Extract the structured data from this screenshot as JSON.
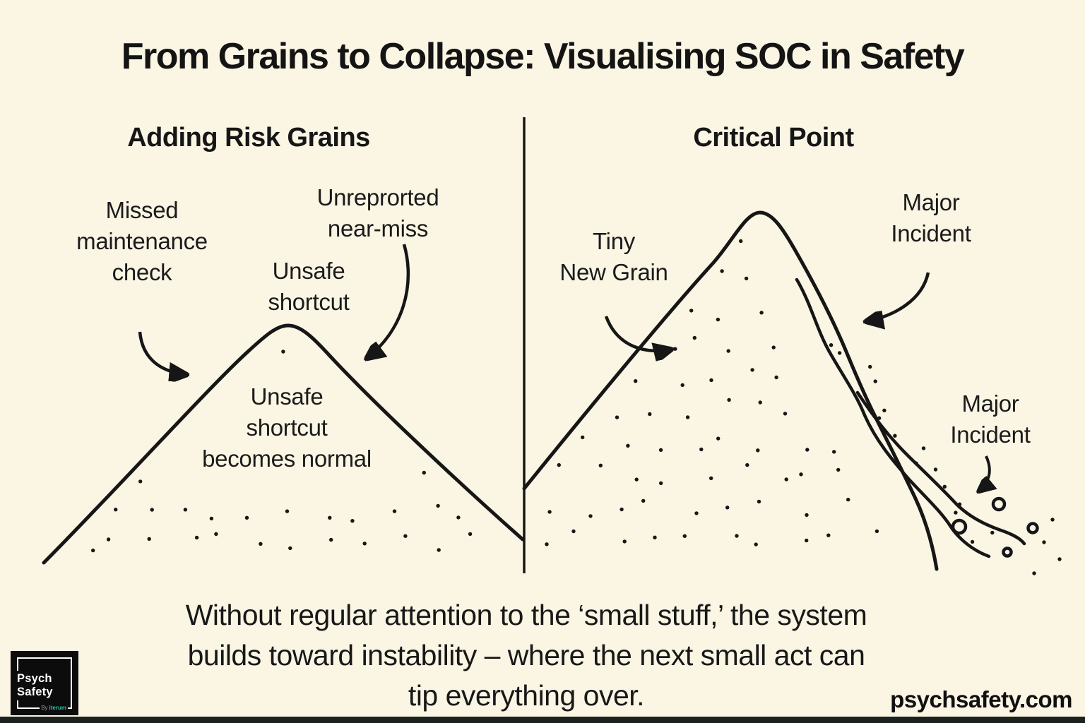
{
  "page": {
    "background": "#FBF5E4",
    "ink": "#161616",
    "bottom_bar_color": "#1B221D"
  },
  "title": "From Grains to Collapse: Visualising SOC in Safety",
  "panels": {
    "left": {
      "header": "Adding Risk Grains",
      "labels": {
        "missed": {
          "lines": [
            "Missed",
            "maintenance",
            "check"
          ]
        },
        "unreported": {
          "lines": [
            "Unreprorted",
            "near-miss"
          ]
        },
        "unsafe_shortcut": {
          "lines": [
            "Unsafe",
            "shortcut"
          ]
        },
        "becomes_normal": {
          "lines": [
            "Unsafe",
            "shortcut",
            "becomes normal"
          ]
        }
      }
    },
    "right": {
      "header": "Critical Point",
      "labels": {
        "tiny_new_grain": {
          "lines": [
            "Tiny",
            "New Grain"
          ]
        },
        "major_incident_top": {
          "lines": [
            "Major",
            "Incident"
          ]
        },
        "major_incident_bottom": {
          "lines": [
            "Major",
            "Incident"
          ]
        }
      }
    }
  },
  "caption_lines": [
    "Without regular attention to the ‘small stuff,’ the system",
    "builds toward instability – where the next small act can",
    "tip everything over."
  ],
  "footer": {
    "website": "psychsafety.com",
    "logo": {
      "line1": "Psych",
      "line2": "Safety",
      "byline_prefix": "By",
      "byline_brand": "iterum",
      "accent_color": "#2FBFA4"
    }
  }
}
